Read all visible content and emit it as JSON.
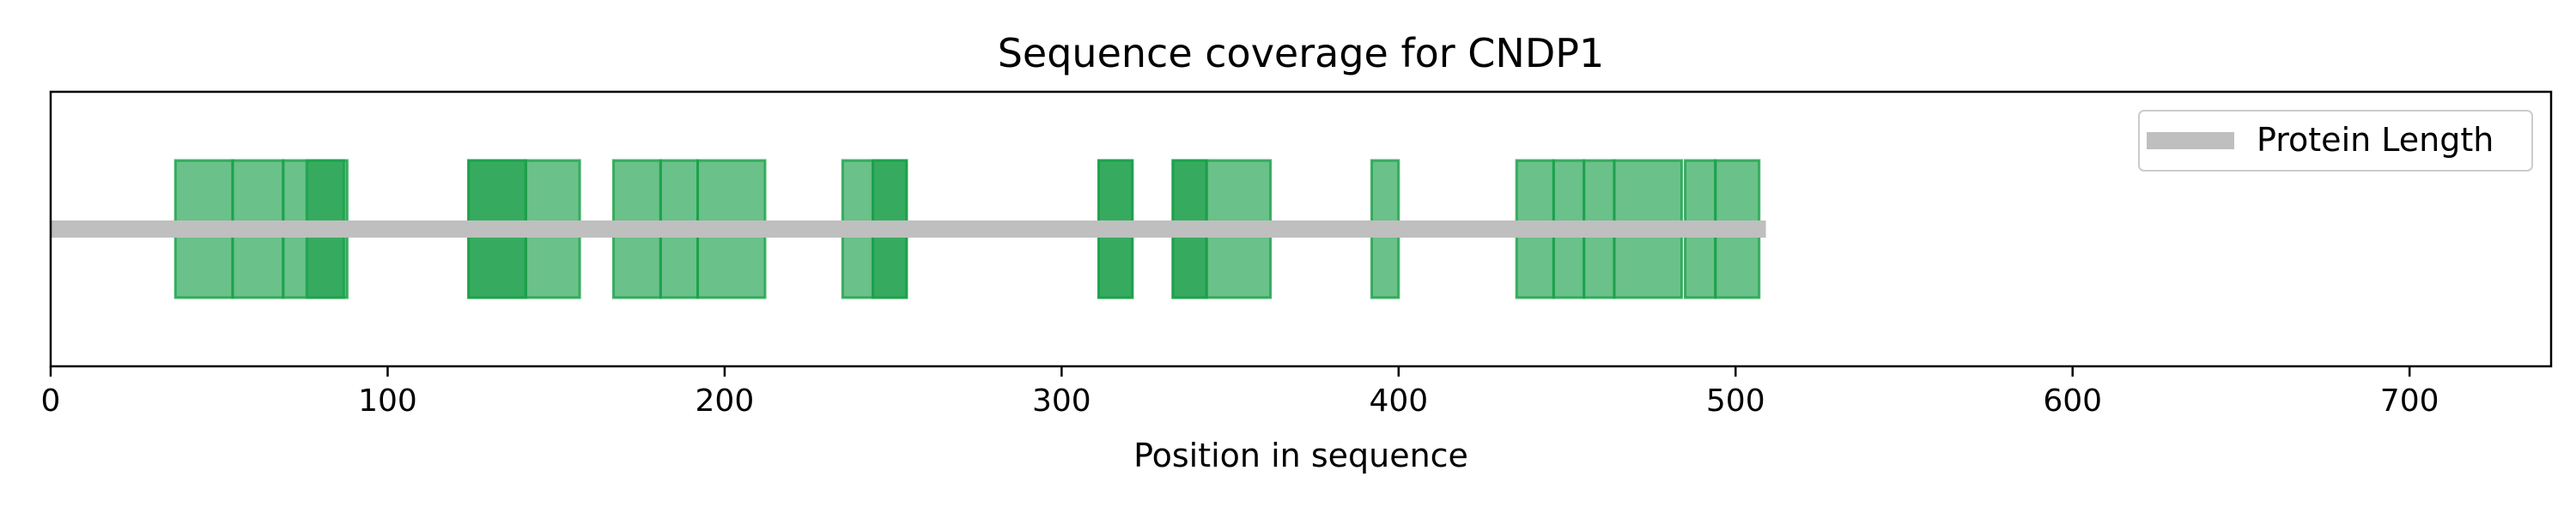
{
  "chart_data": {
    "type": "bar",
    "title": "Sequence coverage for CNDP1",
    "xlabel": "Position in sequence",
    "ylabel": "",
    "xlim": [
      0,
      742
    ],
    "x_ticks": [
      0,
      100,
      200,
      300,
      400,
      500,
      600,
      700
    ],
    "protein_length": 509,
    "series": [
      {
        "name": "Protein Length",
        "color": "#bfbfbf",
        "values": [
          [
            0,
            509
          ]
        ]
      }
    ],
    "peptide_color": "#1aa04a",
    "peptides": [
      [
        37,
        54
      ],
      [
        54,
        69
      ],
      [
        69,
        88
      ],
      [
        76,
        87
      ],
      [
        124,
        141
      ],
      [
        124,
        141
      ],
      [
        141,
        157
      ],
      [
        167,
        181
      ],
      [
        181,
        192
      ],
      [
        192,
        212
      ],
      [
        235,
        244
      ],
      [
        244,
        254
      ],
      [
        244,
        254
      ],
      [
        311,
        321
      ],
      [
        311,
        321
      ],
      [
        333,
        343
      ],
      [
        333,
        343
      ],
      [
        343,
        362
      ],
      [
        392,
        400
      ],
      [
        435,
        446
      ],
      [
        446,
        455
      ],
      [
        455,
        464
      ],
      [
        464,
        484
      ],
      [
        485,
        494
      ],
      [
        494,
        507
      ]
    ],
    "legend": {
      "position": "top-right",
      "entries": [
        "Protein Length"
      ]
    },
    "grid": false
  }
}
